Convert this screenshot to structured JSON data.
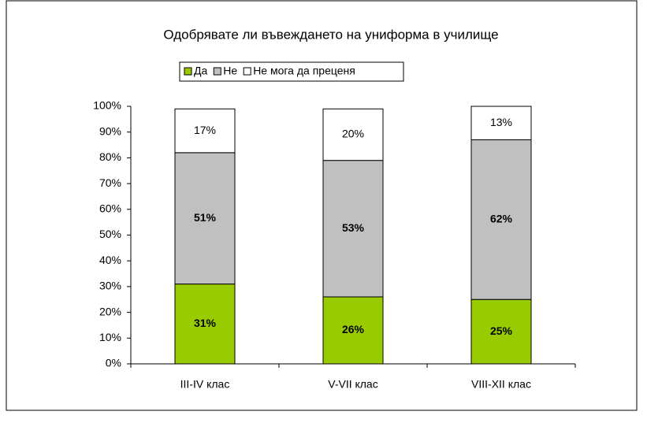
{
  "chart_data": {
    "type": "stacked_bar",
    "title": "Одобрявате ли въвеждането на униформа в училище",
    "categories": [
      "III-IV клас",
      "V-VII клас",
      "VIII-XII клас"
    ],
    "series": [
      {
        "name": "Да",
        "color": "#99cc00",
        "values": [
          31,
          26,
          25
        ],
        "value_labels": [
          "31%",
          "26%",
          "25%"
        ]
      },
      {
        "name": "Не",
        "color": "#c0c0c0",
        "values": [
          51,
          53,
          62
        ],
        "value_labels": [
          "51%",
          "53%",
          "62%"
        ]
      },
      {
        "name": "Не мога да преценя",
        "color": "#ffffff",
        "values": [
          17,
          20,
          13
        ],
        "value_labels": [
          "17%",
          "20%",
          "13%"
        ]
      }
    ],
    "ylim": [
      0,
      100
    ],
    "yticks": [
      {
        "value": 0,
        "label": "0%"
      },
      {
        "value": 10,
        "label": "10%"
      },
      {
        "value": 20,
        "label": "20%"
      },
      {
        "value": 30,
        "label": "30%"
      },
      {
        "value": 40,
        "label": "40%"
      },
      {
        "value": 50,
        "label": "50%"
      },
      {
        "value": 60,
        "label": "60%"
      },
      {
        "value": 70,
        "label": "70%"
      },
      {
        "value": 80,
        "label": "80%"
      },
      {
        "value": 90,
        "label": "90%"
      },
      {
        "value": 100,
        "label": "100%"
      }
    ],
    "legend": "top"
  }
}
